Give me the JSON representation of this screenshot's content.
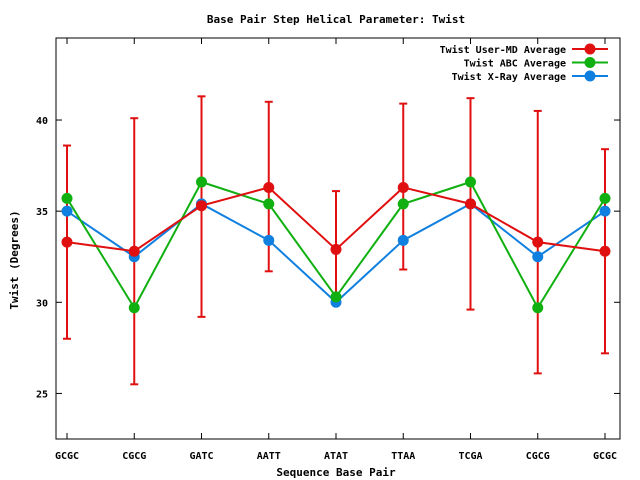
{
  "chart_data": {
    "type": "line",
    "title": "Base Pair Step Helical Parameter: Twist",
    "xlabel": "Sequence Base Pair",
    "ylabel": "Twist (Degrees)",
    "categories": [
      "GCGC",
      "CGCG",
      "GATC",
      "AATT",
      "ATAT",
      "TTAA",
      "TCGA",
      "CGCG",
      "GCGC"
    ],
    "ylim": [
      22.5,
      44.5
    ],
    "yticks": [
      25,
      30,
      35,
      40
    ],
    "legend_position": "top-right",
    "grid": false,
    "series": [
      {
        "name": "Twist User-MD Average",
        "color": "#e01010",
        "values": [
          33.3,
          32.8,
          35.3,
          36.3,
          32.9,
          36.3,
          35.4,
          33.3,
          32.8
        ],
        "error_low": [
          28.0,
          25.5,
          29.2,
          31.7,
          29.9,
          31.8,
          29.6,
          26.1,
          27.2
        ],
        "error_high": [
          38.6,
          40.1,
          41.3,
          41.0,
          36.1,
          40.9,
          41.2,
          40.5,
          38.4
        ]
      },
      {
        "name": "Twist ABC Average",
        "color": "#10b010",
        "values": [
          35.7,
          29.7,
          36.6,
          35.4,
          30.3,
          35.4,
          36.6,
          29.7,
          35.7
        ]
      },
      {
        "name": "Twist X-Ray Average",
        "color": "#1080e0",
        "values": [
          35.0,
          32.5,
          35.4,
          33.4,
          30.0,
          33.4,
          35.4,
          32.5,
          35.0
        ]
      }
    ]
  }
}
